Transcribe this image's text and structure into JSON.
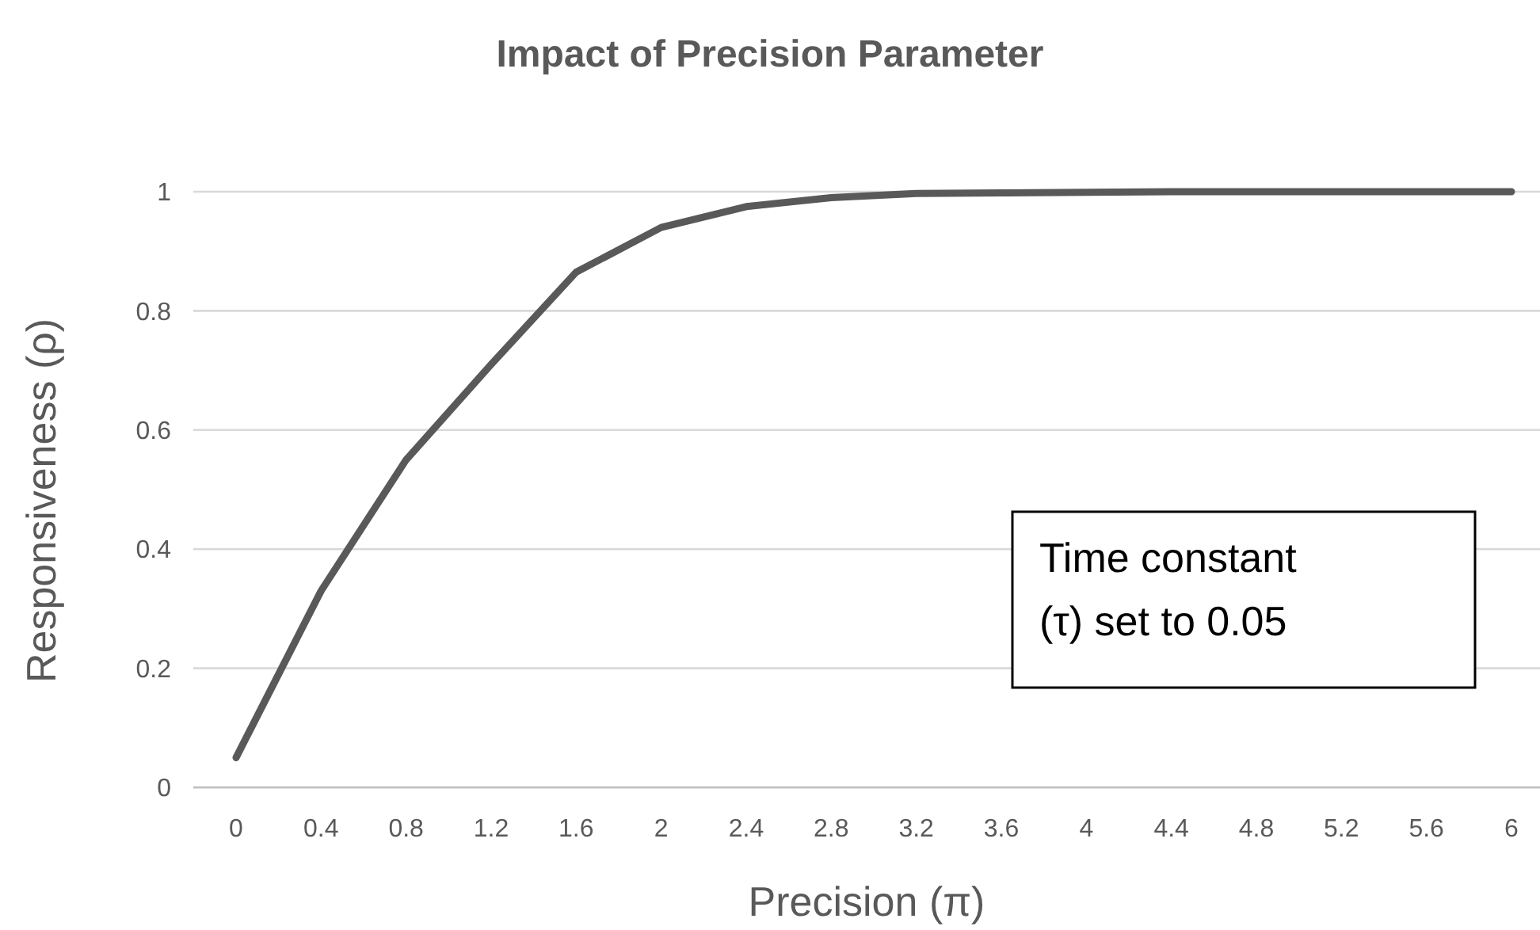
{
  "chart_data": {
    "type": "line",
    "title": "Impact of Precision Parameter",
    "xlabel": "Precision (π)",
    "ylabel": "Responsiveness (ρ)",
    "categories": [
      "0",
      "0.4",
      "0.8",
      "1.2",
      "1.6",
      "2",
      "2.4",
      "2.8",
      "3.2",
      "3.6",
      "4",
      "4.4",
      "4.8",
      "5.2",
      "5.6",
      "6"
    ],
    "series": [
      {
        "color": "#595959",
        "values": [
          0.05,
          0.33,
          0.55,
          0.71,
          0.865,
          0.94,
          0.975,
          0.99,
          0.997,
          0.998,
          0.999,
          1,
          1,
          1,
          1,
          1
        ]
      }
    ],
    "ylim": [
      0,
      1
    ],
    "yticks": [
      0,
      0.2,
      0.4,
      0.6,
      0.8,
      1
    ],
    "grid": "y",
    "marker": "none",
    "line_style": "solid",
    "annotations": [
      "Time constant (τ) set to 0.05"
    ]
  }
}
